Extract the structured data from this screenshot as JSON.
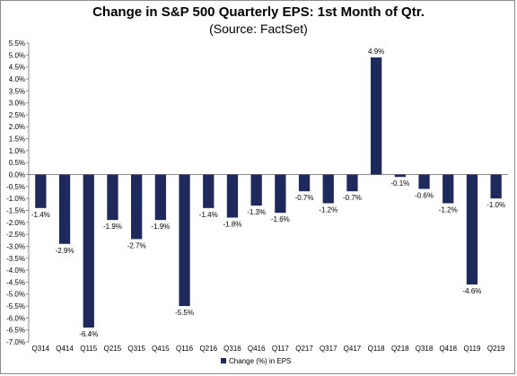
{
  "chart_data": {
    "type": "bar",
    "title": "Change in S&P 500 Quarterly EPS: 1st Month of Qtr.",
    "subtitle": "(Source: FactSet)",
    "categories": [
      "Q314",
      "Q414",
      "Q115",
      "Q215",
      "Q315",
      "Q415",
      "Q116",
      "Q216",
      "Q316",
      "Q416",
      "Q117",
      "Q217",
      "Q317",
      "Q417",
      "Q118",
      "Q218",
      "Q318",
      "Q418",
      "Q119",
      "Q219"
    ],
    "series": [
      {
        "name": "Change (%) in EPS",
        "values": [
          -1.4,
          -2.9,
          -6.4,
          -1.9,
          -2.7,
          -1.9,
          -5.5,
          -1.4,
          -1.8,
          -1.3,
          -1.6,
          -0.7,
          -1.2,
          -0.7,
          4.9,
          -0.1,
          -0.6,
          -1.2,
          -4.6,
          -1.0
        ],
        "labels": [
          "-1.4%",
          "-2.9%",
          "-6.4%",
          "-1.9%",
          "-2.7%",
          "-1.9%",
          "-5.5%",
          "-1.4%",
          "-1.8%",
          "-1.3%",
          "-1.6%",
          "-0.7%",
          "-1.2%",
          "-0.7%",
          "4.9%",
          "-0.1%",
          "-0.6%",
          "-1.2%",
          "-4.6%",
          "-1.0%"
        ]
      }
    ],
    "ylim": [
      -7.0,
      5.5
    ],
    "ytick_step": 0.5,
    "ytick_labels": [
      "5.5%",
      "5.0%",
      "4.5%",
      "4.0%",
      "3.5%",
      "3.0%",
      "2.5%",
      "2.0%",
      "1.5%",
      "1.0%",
      "0.5%",
      "0.0%",
      "-0.5%",
      "-1.0%",
      "-1.5%",
      "-2.0%",
      "-2.5%",
      "-3.0%",
      "-3.5%",
      "-4.0%",
      "-4.5%",
      "-5.0%",
      "-5.5%",
      "-6.0%",
      "-6.5%",
      "-7.0%"
    ],
    "xlabel": "",
    "ylabel": "",
    "grid": false,
    "legend_position": "bottom-center",
    "bar_color": "#1f2a5c"
  }
}
